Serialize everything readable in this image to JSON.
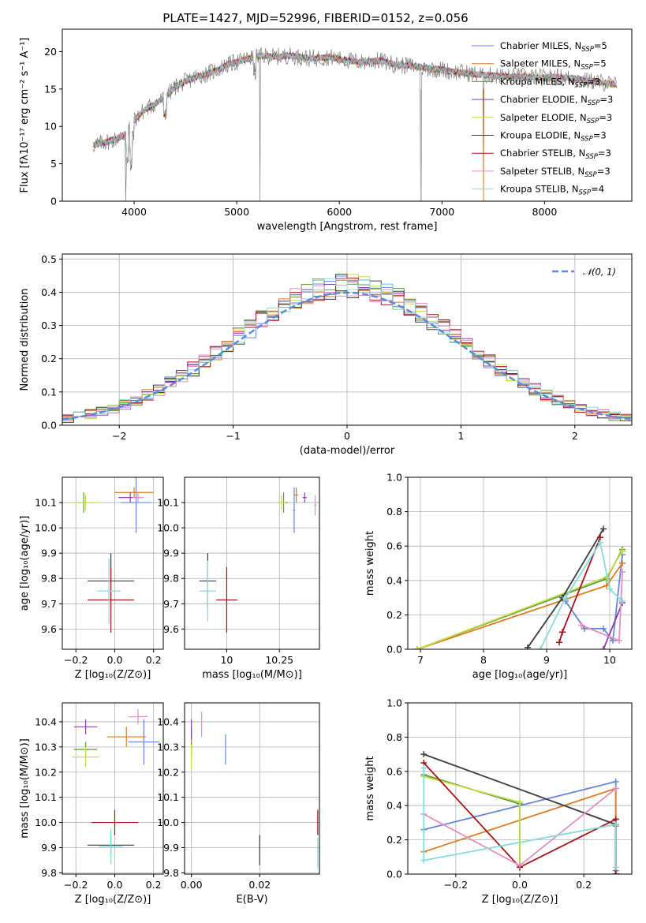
{
  "colors": [
    "#6488d8",
    "#e07a1e",
    "#5a9a3a",
    "#8a3db0",
    "#c9d94a",
    "#3c3c3c",
    "#a31515",
    "#e38ec0",
    "#86dbdb"
  ],
  "chart_data": [
    {
      "id": "spectrum",
      "type": "line",
      "title": "PLATE=1427, MJD=52996, FIBERID=0152, z=0.056",
      "xlabel": "wavelength [Angstrom, rest frame]",
      "ylabel": "Flux [fλ10⁻¹⁷ erg cm⁻² s⁻¹ A⁻¹]",
      "xlim": [
        3300,
        8850
      ],
      "ylim": [
        0,
        23
      ],
      "xticks": [
        4000,
        5000,
        6000,
        7000,
        8000
      ],
      "yticks": [
        0,
        5,
        10,
        15,
        20
      ],
      "grid": false,
      "legend_position": "top-right",
      "legend": [
        "Chabrier MILES, N_SSP=5",
        "Salpeter MILES, N_SSP=5",
        "Kroupa MILES, N_SSP=3",
        "Chabrier ELODIE, N_SSP=3",
        "Salpeter ELODIE, N_SSP=3",
        "Kroupa ELODIE, N_SSP=3",
        "Chabrier STELIB, N_SSP=3",
        "Salpeter STELIB, N_SSP=3",
        "Kroupa STELIB, N_SSP=4"
      ],
      "model_envelope": {
        "x": [
          3600,
          3700,
          3800,
          3900,
          4000,
          4100,
          4200,
          4300,
          4400,
          4500,
          4600,
          4700,
          4800,
          4900,
          5000,
          5100,
          5200,
          5300,
          5400,
          5500,
          5600,
          5700,
          5800,
          5900,
          6000,
          6100,
          6200,
          6300,
          6400,
          6500,
          6600,
          6700,
          6800,
          6900,
          7000,
          7100,
          7200,
          7300,
          7400,
          7500,
          7600,
          7700,
          7800,
          7900,
          8000,
          8100,
          8200,
          8300,
          8400,
          8500,
          8600,
          8700
        ],
        "y": [
          7.5,
          7.8,
          8.2,
          8.8,
          10.8,
          12.2,
          13.0,
          13.8,
          15.3,
          16.0,
          16.6,
          17.0,
          17.5,
          18.2,
          18.6,
          19.0,
          19.4,
          19.4,
          19.3,
          19.5,
          19.3,
          19.1,
          19.1,
          19.3,
          19.0,
          18.8,
          18.6,
          18.7,
          18.8,
          18.4,
          18.2,
          18.1,
          17.9,
          17.7,
          17.6,
          17.3,
          17.2,
          17.0,
          16.9,
          16.8,
          16.7,
          16.6,
          16.7,
          16.6,
          16.5,
          16.6,
          16.5,
          16.4,
          16.1,
          16.0,
          15.8,
          15.5
        ]
      },
      "data_line_color": "#7f7f7f",
      "data_dropouts_x": [
        3920,
        5225,
        6795,
        7405
      ]
    },
    {
      "id": "residuals",
      "type": "step",
      "xlabel": "(data-model)/error",
      "ylabel": "Normed distribution",
      "xlim": [
        -2.5,
        2.5
      ],
      "ylim": [
        0,
        0.515
      ],
      "xticks": [
        -2,
        -1,
        0,
        1,
        2
      ],
      "yticks": [
        0.0,
        0.1,
        0.2,
        0.3,
        0.4,
        0.5
      ],
      "grid": true,
      "legend_position": "top-right",
      "legend": [
        "𝒩(0, 1)"
      ],
      "reference_curve": "normal pdf, mean 0, sigma 1, dashed",
      "bin_width": 0.1
    },
    {
      "id": "age_vs_Z",
      "type": "scatter_errorbar",
      "xlabel": "Z [log₁₀(Z/Z⊙)]",
      "ylabel": "age  [log₁₀(age/yr)]",
      "xlim": [
        -0.27,
        0.25
      ],
      "ylim": [
        9.52,
        10.2
      ],
      "xticks": [
        -0.2,
        0.0,
        0.2
      ],
      "xticklabels": [
        "−0.2",
        "0.0",
        "0.2"
      ],
      "yticks": [
        9.6,
        9.7,
        9.8,
        9.9,
        10.0,
        10.1
      ],
      "grid": true,
      "points": [
        {
          "x": 0.11,
          "y": 10.1,
          "xerr": 0.08,
          "yerr": 0.12,
          "c": 0
        },
        {
          "x": 0.1,
          "y": 10.14,
          "xerr": 0.1,
          "yerr": 0.02,
          "c": 1
        },
        {
          "x": -0.16,
          "y": 10.1,
          "xerr": 0.06,
          "yerr": 0.04,
          "c": 2
        },
        {
          "x": 0.08,
          "y": 10.12,
          "xerr": 0.06,
          "yerr": 0.02,
          "c": 3
        },
        {
          "x": -0.15,
          "y": 10.1,
          "xerr": 0.08,
          "yerr": 0.03,
          "c": 4
        },
        {
          "x": -0.02,
          "y": 9.79,
          "xerr": 0.12,
          "yerr": 0.11,
          "c": 5
        },
        {
          "x": -0.02,
          "y": 9.715,
          "xerr": 0.12,
          "yerr": 0.13,
          "c": 6
        },
        {
          "x": 0.12,
          "y": 10.12,
          "xerr": 0.03,
          "yerr": 0.02,
          "c": 7
        },
        {
          "x": -0.03,
          "y": 9.75,
          "xerr": 0.06,
          "yerr": 0.13,
          "c": 8
        }
      ]
    },
    {
      "id": "age_vs_mass",
      "type": "scatter_errorbar",
      "xlabel": "mass [log₁₀(M/M⊙)]",
      "ylabel": "",
      "xlim": [
        9.8,
        10.44
      ],
      "ylim": [
        9.52,
        10.2
      ],
      "xticks": [
        10.0,
        10.25
      ],
      "yticks": [
        9.6,
        9.7,
        9.8,
        9.9,
        10.0,
        10.1
      ],
      "grid": true,
      "points": [
        {
          "x": 10.32,
          "y": 10.07,
          "xerr": 0.005,
          "yerr": 0.09,
          "c": 0
        },
        {
          "x": 10.33,
          "y": 10.13,
          "xerr": 0.01,
          "yerr": 0.03,
          "c": 1
        },
        {
          "x": 10.27,
          "y": 10.1,
          "xerr": 0.02,
          "yerr": 0.04,
          "c": 2
        },
        {
          "x": 10.37,
          "y": 10.12,
          "xerr": 0.01,
          "yerr": 0.02,
          "c": 3
        },
        {
          "x": 10.26,
          "y": 10.1,
          "xerr": 0.02,
          "yerr": 0.03,
          "c": 4
        },
        {
          "x": 9.91,
          "y": 9.79,
          "xerr": 0.04,
          "yerr": 0.11,
          "c": 5
        },
        {
          "x": 10.0,
          "y": 9.715,
          "xerr": 0.05,
          "yerr": 0.13,
          "c": 6
        },
        {
          "x": 10.42,
          "y": 10.09,
          "xerr": 0.005,
          "yerr": 0.04,
          "c": 7
        },
        {
          "x": 9.91,
          "y": 9.75,
          "xerr": 0.04,
          "yerr": 0.12,
          "c": 8
        }
      ]
    },
    {
      "id": "weight_vs_age",
      "type": "line",
      "xlabel": "age  [log₁₀(age/yr)]",
      "ylabel": "mass weight",
      "xlim": [
        6.8,
        10.35
      ],
      "ylim": [
        0,
        1.0
      ],
      "xticks": [
        7,
        8,
        9,
        10
      ],
      "yticks": [
        0.0,
        0.2,
        0.4,
        0.6,
        0.8,
        1.0
      ],
      "grid": true,
      "series": [
        {
          "c": 0,
          "x": [
            9.3,
            9.6,
            9.9,
            10.05,
            10.2
          ],
          "y": [
            0.28,
            0.12,
            0.12,
            0.05,
            0.55
          ]
        },
        {
          "c": 1,
          "x": [
            6.95,
            9.95,
            10.2
          ],
          "y": [
            0.0,
            0.37,
            0.5
          ]
        },
        {
          "c": 2,
          "x": [
            6.95,
            9.95,
            10.2
          ],
          "y": [
            0.0,
            0.41,
            0.58
          ]
        },
        {
          "c": 3,
          "x": [
            9.9,
            10.2
          ],
          "y": [
            0.0,
            0.27
          ]
        },
        {
          "c": 4,
          "x": [
            6.95,
            9.95,
            10.2
          ],
          "y": [
            0.0,
            0.42,
            0.57
          ]
        },
        {
          "c": 5,
          "x": [
            8.7,
            9.25,
            9.9
          ],
          "y": [
            0.01,
            0.3,
            0.7
          ]
        },
        {
          "c": 6,
          "x": [
            9.2,
            9.25,
            9.85
          ],
          "y": [
            0.04,
            0.1,
            0.65
          ]
        },
        {
          "c": 7,
          "x": [
            9.55,
            10.15,
            10.2
          ],
          "y": [
            0.14,
            0.05,
            0.45
          ]
        },
        {
          "c": 8,
          "x": [
            8.9,
            9.3,
            9.85,
            10.0,
            10.2
          ],
          "y": [
            0.0,
            0.3,
            0.62,
            0.35,
            0.28
          ]
        }
      ]
    },
    {
      "id": "mass_vs_Z",
      "type": "scatter_errorbar",
      "xlabel": "Z [log₁₀(Z/Z⊙)]",
      "ylabel": "mass [log₁₀(M/M⊙)]",
      "xlim": [
        -0.27,
        0.25
      ],
      "ylim": [
        9.795,
        10.475
      ],
      "xticks": [
        -0.2,
        0.0,
        0.2
      ],
      "xticklabels": [
        "−0.2",
        "0.0",
        "0.2"
      ],
      "yticks": [
        9.8,
        9.9,
        10.0,
        10.1,
        10.2,
        10.3,
        10.4
      ],
      "grid": true,
      "points": [
        {
          "x": 0.15,
          "y": 10.32,
          "xerr": 0.08,
          "yerr": 0.09,
          "c": 0
        },
        {
          "x": 0.06,
          "y": 10.34,
          "xerr": 0.1,
          "yerr": 0.04,
          "c": 1
        },
        {
          "x": -0.15,
          "y": 10.29,
          "xerr": 0.06,
          "yerr": 0.03,
          "c": 2
        },
        {
          "x": -0.15,
          "y": 10.38,
          "xerr": 0.06,
          "yerr": 0.03,
          "c": 3
        },
        {
          "x": -0.15,
          "y": 10.26,
          "xerr": 0.07,
          "yerr": 0.04,
          "c": 4
        },
        {
          "x": -0.02,
          "y": 9.91,
          "xerr": 0.12,
          "yerr": 0.04,
          "c": 5
        },
        {
          "x": 0.0,
          "y": 10.0,
          "xerr": 0.12,
          "yerr": 0.05,
          "c": 6
        },
        {
          "x": 0.12,
          "y": 10.42,
          "xerr": 0.05,
          "yerr": 0.03,
          "c": 7
        },
        {
          "x": -0.02,
          "y": 9.905,
          "xerr": 0.06,
          "yerr": 0.07,
          "c": 8
        }
      ]
    },
    {
      "id": "mass_vs_ebv",
      "type": "scatter_errorbar",
      "xlabel": "E(B-V)",
      "ylabel": "",
      "xlim": [
        -0.002,
        0.0375
      ],
      "ylim": [
        9.795,
        10.475
      ],
      "xticks": [
        0.0,
        0.02
      ],
      "xticklabels": [
        "0.00",
        "0.02"
      ],
      "yticks": [
        9.8,
        9.9,
        10.0,
        10.1,
        10.2,
        10.3,
        10.4
      ],
      "grid": true,
      "points": [
        {
          "x": 0.01,
          "y": 10.29,
          "xerr": 0,
          "yerr": 0.06,
          "c": 0
        },
        {
          "x": 0.0,
          "y": 10.34,
          "xerr": 0,
          "yerr": 0.03,
          "c": 1
        },
        {
          "x": 0.0,
          "y": 10.29,
          "xerr": 0,
          "yerr": 0.03,
          "c": 2
        },
        {
          "x": 0.0,
          "y": 10.37,
          "xerr": 0,
          "yerr": 0.04,
          "c": 3
        },
        {
          "x": 0.0,
          "y": 10.26,
          "xerr": 0,
          "yerr": 0.05,
          "c": 4
        },
        {
          "x": 0.02,
          "y": 9.89,
          "xerr": 0,
          "yerr": 0.06,
          "c": 5
        },
        {
          "x": 0.037,
          "y": 10.0,
          "xerr": 0,
          "yerr": 0.05,
          "c": 6
        },
        {
          "x": 0.003,
          "y": 10.39,
          "xerr": 0,
          "yerr": 0.05,
          "c": 7
        },
        {
          "x": 0.037,
          "y": 9.88,
          "xerr": 0,
          "yerr": 0.06,
          "c": 8
        }
      ]
    },
    {
      "id": "weight_vs_Z",
      "type": "line",
      "xlabel": "Z [log₁₀(Z/Z⊙)]",
      "ylabel": "mass weight",
      "xlim": [
        -0.35,
        0.35
      ],
      "ylim": [
        0,
        1.0
      ],
      "xticks": [
        -0.2,
        0.0,
        0.2
      ],
      "xticklabels": [
        "−0.2",
        "0.0",
        "0.2"
      ],
      "yticks": [
        0.0,
        0.2,
        0.4,
        0.6,
        0.8,
        1.0
      ],
      "grid": true,
      "series": [
        {
          "c": 0,
          "x": [
            -0.3,
            0.3,
            0.3
          ],
          "y": [
            0.26,
            0.54,
            0.02
          ]
        },
        {
          "c": 1,
          "x": [
            -0.3,
            0.3,
            0.3
          ],
          "y": [
            0.13,
            0.5,
            0.28
          ]
        },
        {
          "c": 2,
          "x": [
            -0.3,
            0.0,
            0.0
          ],
          "y": [
            0.58,
            0.41,
            0.04
          ]
        },
        {
          "c": 3,
          "x": [
            0.3,
            0.3
          ],
          "y": [
            0.0,
            0.32
          ]
        },
        {
          "c": 4,
          "x": [
            -0.3,
            0.0,
            0.0
          ],
          "y": [
            0.57,
            0.42,
            0.05
          ]
        },
        {
          "c": 5,
          "x": [
            -0.3,
            0.3,
            0.3
          ],
          "y": [
            0.7,
            0.29,
            0.0
          ]
        },
        {
          "c": 6,
          "x": [
            -0.3,
            0.0,
            0.3,
            0.3
          ],
          "y": [
            0.65,
            0.04,
            0.32,
            0.0
          ]
        },
        {
          "c": 7,
          "x": [
            -0.3,
            0.0,
            0.3
          ],
          "y": [
            0.35,
            0.05,
            0.5
          ]
        },
        {
          "c": 8,
          "x": [
            -0.3,
            -0.3,
            0.3,
            0.3
          ],
          "y": [
            0.62,
            0.08,
            0.29,
            0.04
          ]
        }
      ]
    }
  ]
}
